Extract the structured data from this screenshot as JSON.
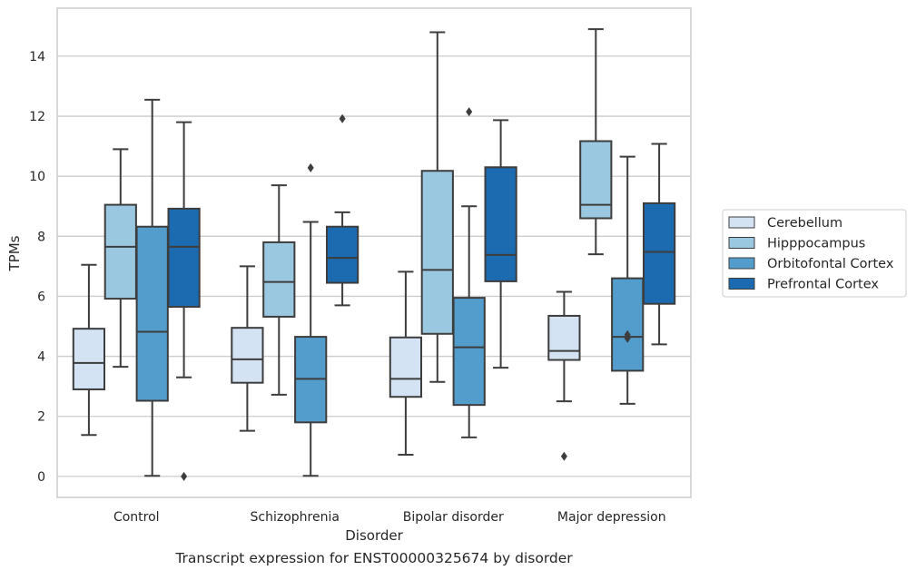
{
  "caption": "Transcript expression for ENST00000325674 by disorder",
  "chart_data": {
    "type": "box",
    "xlabel": "Disorder",
    "ylabel": "TPMs",
    "ylim": [
      -0.7,
      15.6
    ],
    "yticks": [
      0,
      2,
      4,
      6,
      8,
      10,
      12,
      14
    ],
    "grid": "horizontal",
    "legend_position": "right",
    "categories": [
      "Control",
      "Schizophrenia",
      "Bipolar disorder",
      "Major depression"
    ],
    "series": [
      {
        "name": "Cerebellum",
        "color": "#d3e3f3",
        "boxes": [
          {
            "whislo": 1.38,
            "q1": 2.9,
            "med": 3.78,
            "q3": 4.92,
            "whishi": 7.05,
            "fliers": []
          },
          {
            "whislo": 1.52,
            "q1": 3.12,
            "med": 3.9,
            "q3": 4.95,
            "whishi": 7.0,
            "fliers": []
          },
          {
            "whislo": 0.72,
            "q1": 2.65,
            "med": 3.25,
            "q3": 4.63,
            "whishi": 6.82,
            "fliers": []
          },
          {
            "whislo": 2.5,
            "q1": 3.88,
            "med": 4.18,
            "q3": 5.35,
            "whishi": 6.15,
            "fliers": [
              0.67
            ]
          }
        ]
      },
      {
        "name": "Hipppocampus",
        "color": "#9ac8e0",
        "boxes": [
          {
            "whislo": 3.65,
            "q1": 5.92,
            "med": 7.65,
            "q3": 9.05,
            "whishi": 10.9,
            "fliers": []
          },
          {
            "whislo": 2.72,
            "q1": 5.32,
            "med": 6.48,
            "q3": 7.8,
            "whishi": 9.7,
            "fliers": []
          },
          {
            "whislo": 3.15,
            "q1": 4.75,
            "med": 6.88,
            "q3": 10.18,
            "whishi": 14.8,
            "fliers": []
          },
          {
            "whislo": 7.4,
            "q1": 8.6,
            "med": 9.05,
            "q3": 11.17,
            "whishi": 14.9,
            "fliers": []
          }
        ]
      },
      {
        "name": "Orbitofontal Cortex",
        "color": "#529dcc",
        "boxes": [
          {
            "whislo": 0.02,
            "q1": 2.52,
            "med": 4.82,
            "q3": 8.32,
            "whishi": 12.55,
            "fliers": []
          },
          {
            "whislo": 0.02,
            "q1": 1.8,
            "med": 3.25,
            "q3": 4.65,
            "whishi": 8.48,
            "fliers": [
              10.28
            ]
          },
          {
            "whislo": 1.3,
            "q1": 2.38,
            "med": 4.3,
            "q3": 5.95,
            "whishi": 9.0,
            "fliers": [
              12.15
            ]
          },
          {
            "whislo": 2.42,
            "q1": 3.52,
            "med": 4.65,
            "q3": 6.6,
            "whishi": 10.65,
            "fliers": [
              4.6,
              4.72
            ]
          }
        ]
      },
      {
        "name": "Prefrontal Cortex",
        "color": "#1c6aaf",
        "boxes": [
          {
            "whislo": 3.3,
            "q1": 5.65,
            "med": 7.65,
            "q3": 8.92,
            "whishi": 11.8,
            "fliers": [
              0.0
            ]
          },
          {
            "whislo": 5.7,
            "q1": 6.45,
            "med": 7.28,
            "q3": 8.32,
            "whishi": 8.8,
            "fliers": [
              11.92
            ]
          },
          {
            "whislo": 3.62,
            "q1": 6.5,
            "med": 7.38,
            "q3": 10.3,
            "whishi": 11.87,
            "fliers": []
          },
          {
            "whislo": 4.4,
            "q1": 5.75,
            "med": 7.48,
            "q3": 9.1,
            "whishi": 11.08,
            "fliers": []
          }
        ]
      }
    ]
  }
}
